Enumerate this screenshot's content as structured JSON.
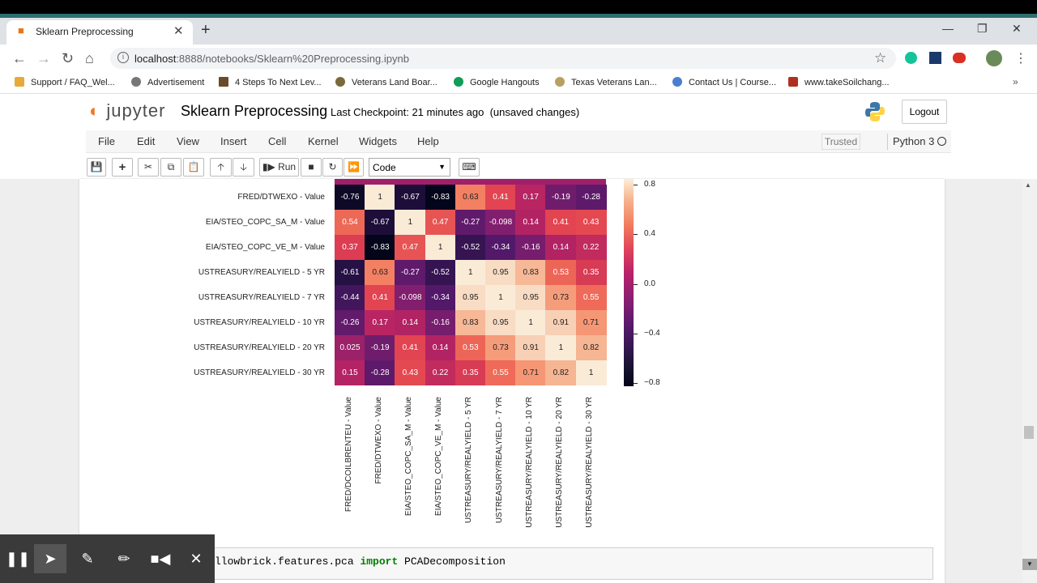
{
  "browser": {
    "tab_title": "Sklearn Preprocessing",
    "url_host": "localhost",
    "url_rest": ":8888/notebooks/Sklearn%20Preprocessing.ipynb",
    "bookmarks": [
      "Support / FAQ_Wel...",
      "Advertisement",
      "4 Steps To Next Lev...",
      "Veterans Land Boar...",
      "Google Hangouts",
      "Texas Veterans Lan...",
      "Contact Us | Course...",
      "www.takeSoilchang..."
    ]
  },
  "jupyter": {
    "logo": "jupyter",
    "notebook_name": "Sklearn Preprocessing",
    "checkpoint": "Last Checkpoint: 21 minutes ago",
    "unsaved": "(unsaved changes)",
    "logout": "Logout",
    "menu": [
      "File",
      "Edit",
      "View",
      "Insert",
      "Cell",
      "Kernel",
      "Widgets",
      "Help"
    ],
    "trusted": "Trusted",
    "kernel": "Python 3",
    "run_label": "Run",
    "cell_type": "Code"
  },
  "chart_data": {
    "type": "heatmap",
    "row_labels": [
      "FRED/DTWEXO - Value",
      "EIA/STEO_COPC_SA_M - Value",
      "EIA/STEO_COPC_VE_M - Value",
      "USTREASURY/REALYIELD - 5 YR",
      "USTREASURY/REALYIELD - 7 YR",
      "USTREASURY/REALYIELD - 10 YR",
      "USTREASURY/REALYIELD - 20 YR",
      "USTREASURY/REALYIELD - 30 YR"
    ],
    "col_labels": [
      "FRED/DCOILBRENTEU - Value",
      "FRED/DTWEXO - Value",
      "EIA/STEO_COPC_SA_M - Value",
      "EIA/STEO_COPC_VE_M - Value",
      "USTREASURY/REALYIELD - 5 YR",
      "USTREASURY/REALYIELD - 7 YR",
      "USTREASURY/REALYIELD - 10 YR",
      "USTREASURY/REALYIELD - 20 YR",
      "USTREASURY/REALYIELD - 30 YR"
    ],
    "values": [
      [
        "-0.76",
        "1",
        "-0.67",
        "-0.83",
        "0.63",
        "0.41",
        "0.17",
        "-0.19",
        "-0.28"
      ],
      [
        "0.54",
        "-0.67",
        "1",
        "0.47",
        "-0.27",
        "-0.098",
        "0.14",
        "0.41",
        "0.43"
      ],
      [
        "0.37",
        "-0.83",
        "0.47",
        "1",
        "-0.52",
        "-0.34",
        "-0.16",
        "0.14",
        "0.22"
      ],
      [
        "-0.61",
        "0.63",
        "-0.27",
        "-0.52",
        "1",
        "0.95",
        "0.83",
        "0.53",
        "0.35"
      ],
      [
        "-0.44",
        "0.41",
        "-0.098",
        "-0.34",
        "0.95",
        "1",
        "0.95",
        "0.73",
        "0.55"
      ],
      [
        "-0.26",
        "0.17",
        "0.14",
        "-0.16",
        "0.83",
        "0.95",
        "1",
        "0.91",
        "0.71"
      ],
      [
        "0.025",
        "-0.19",
        "0.41",
        "0.14",
        "0.53",
        "0.73",
        "0.91",
        "1",
        "0.82"
      ],
      [
        "0.15",
        "-0.28",
        "0.43",
        "0.22",
        "0.35",
        "0.55",
        "0.71",
        "0.82",
        "1"
      ]
    ],
    "colorbar_ticks": [
      "0.8",
      "0.4",
      "0.0",
      "−0.4",
      "−0.8"
    ],
    "colorbar_range": [
      -0.83,
      1
    ]
  },
  "code": {
    "prefix": "llowbrick.features.pca ",
    "keyword": "import",
    "suffix": " PCADecomposition"
  }
}
